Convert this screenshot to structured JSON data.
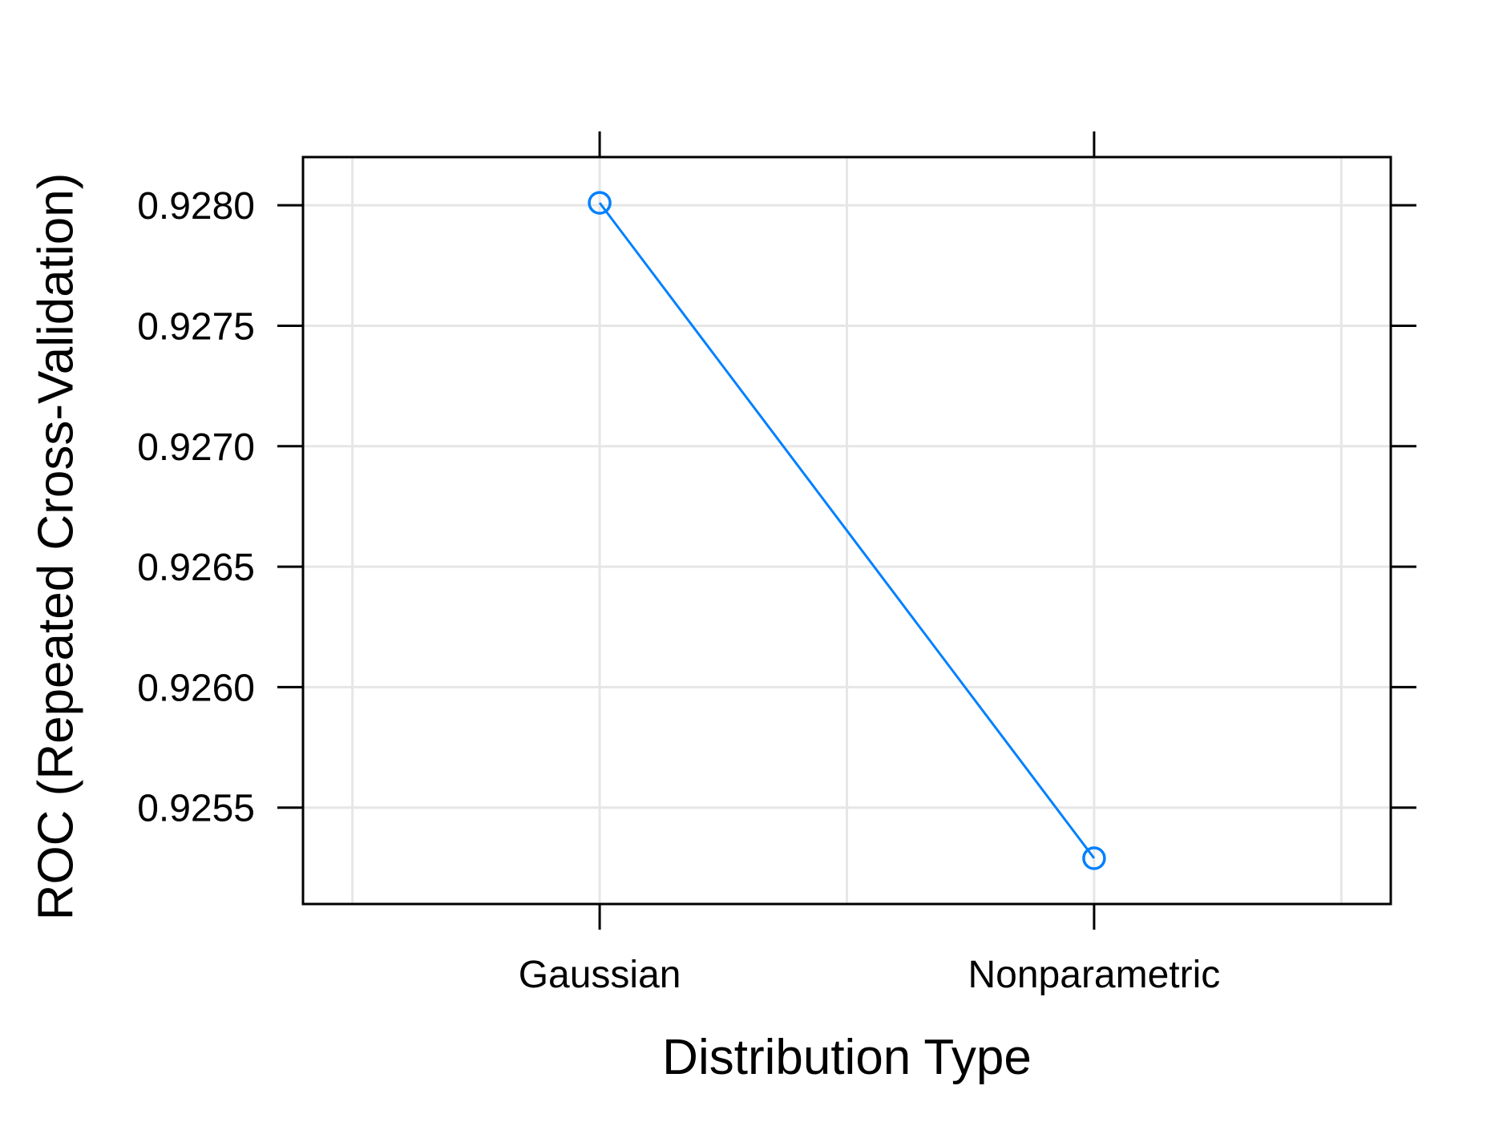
{
  "chart_data": {
    "type": "line",
    "categories": [
      "Gaussian",
      "Nonparametric"
    ],
    "series": [
      {
        "values": [
          0.92801,
          0.92529
        ],
        "color": "#0080ff",
        "marker": "open-circle"
      }
    ],
    "title": "",
    "xlabel": "Distribution Type",
    "ylabel": "ROC (Repeated Cross-Validation)",
    "ylim": [
      0.9251,
      0.9282
    ],
    "yticks": [
      0.9255,
      0.926,
      0.9265,
      0.927,
      0.9275,
      0.928
    ],
    "ytick_labels": [
      "0.9255",
      "0.9260",
      "0.9265",
      "0.9270",
      "0.9275",
      "0.9280"
    ],
    "grid": true,
    "grid_color": "#e6e6e6",
    "legend": "none"
  }
}
